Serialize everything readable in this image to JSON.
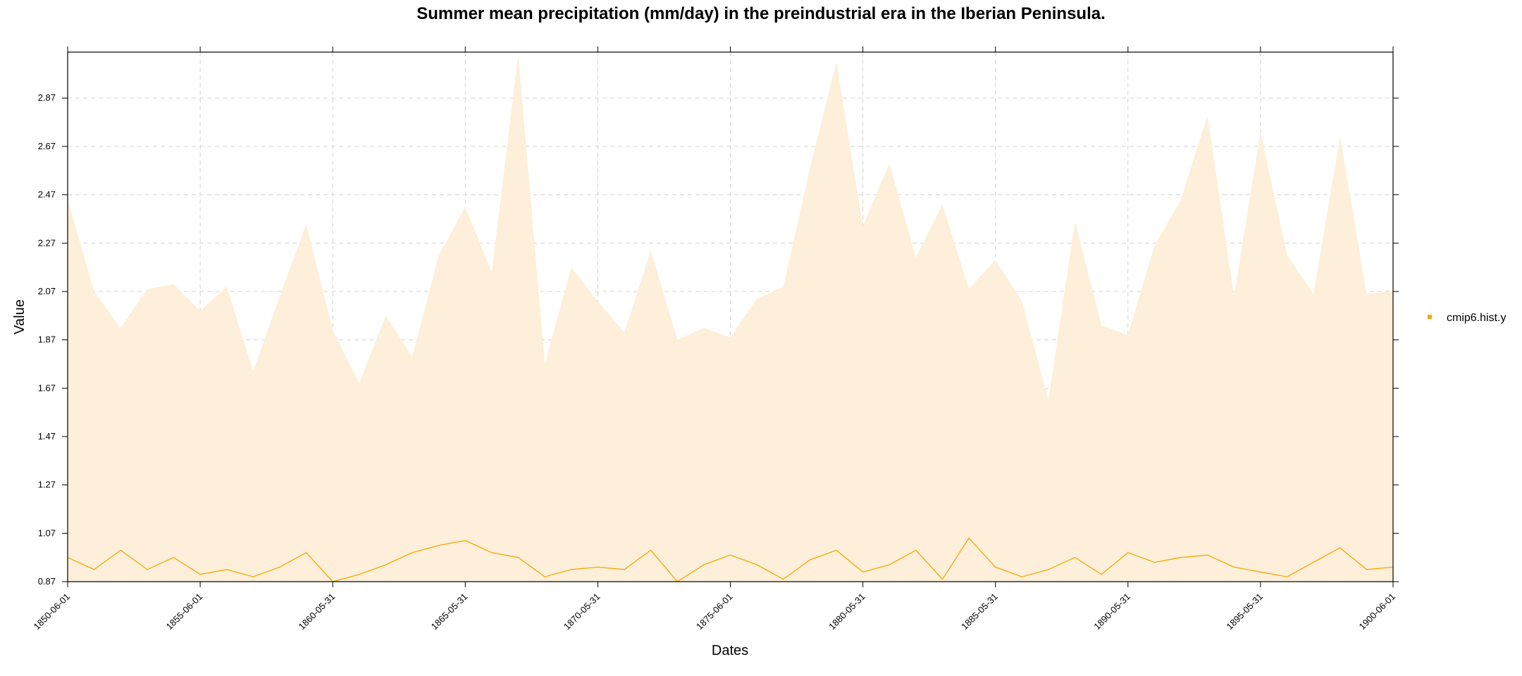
{
  "chart_data": {
    "type": "area",
    "title": "Summer mean precipitation (mm/day) in the preindustrial era in the Iberian Peninsula.",
    "xlabel": "Dates",
    "ylabel": "Value",
    "x_tick_labels": [
      "1850-06-01",
      "1855-06-01",
      "1860-05-31",
      "1865-05-31",
      "1870-05-31",
      "1875-06-01",
      "1880-05-31",
      "1885-05-31",
      "1890-05-31",
      "1895-05-31",
      "1900-06-01"
    ],
    "y_ticks": [
      0.87,
      1.07,
      1.27,
      1.47,
      1.67,
      1.87,
      2.07,
      2.27,
      2.47,
      2.67,
      2.87
    ],
    "ylim": [
      0.87,
      3.06
    ],
    "grid": true,
    "legend_position": "right",
    "years": [
      1850,
      1851,
      1852,
      1853,
      1854,
      1855,
      1856,
      1857,
      1858,
      1859,
      1860,
      1861,
      1862,
      1863,
      1864,
      1865,
      1866,
      1867,
      1868,
      1869,
      1870,
      1871,
      1872,
      1873,
      1874,
      1875,
      1876,
      1877,
      1878,
      1879,
      1880,
      1881,
      1882,
      1883,
      1884,
      1885,
      1886,
      1887,
      1888,
      1889,
      1890,
      1891,
      1892,
      1893,
      1894,
      1895,
      1896,
      1897,
      1898,
      1899,
      1900
    ],
    "series": [
      {
        "name": "cmip6.hist.y",
        "color": "#F5A800",
        "fill_color": "#FDEFD9",
        "mean": [
          0.97,
          0.92,
          1.0,
          0.92,
          0.97,
          0.9,
          0.92,
          0.89,
          0.93,
          0.99,
          0.87,
          0.9,
          0.94,
          0.99,
          1.02,
          1.04,
          0.99,
          0.97,
          0.89,
          0.92,
          0.93,
          0.92,
          1.0,
          0.87,
          0.94,
          0.98,
          0.94,
          0.88,
          0.96,
          1.0,
          0.91,
          0.94,
          1.0,
          0.88,
          1.05,
          0.93,
          0.89,
          0.92,
          0.97,
          0.9,
          0.99,
          0.95,
          0.97,
          0.98,
          0.93,
          0.91,
          0.89,
          0.95,
          1.01,
          0.92,
          0.93
        ],
        "upper": [
          2.45,
          2.07,
          1.92,
          2.08,
          2.1,
          1.99,
          2.09,
          1.74,
          2.05,
          2.35,
          1.91,
          1.69,
          1.97,
          1.8,
          2.22,
          2.42,
          2.15,
          3.05,
          1.77,
          2.17,
          2.03,
          1.9,
          2.24,
          1.87,
          1.92,
          1.88,
          2.04,
          2.09,
          2.58,
          3.02,
          2.34,
          2.6,
          2.21,
          2.43,
          2.08,
          2.2,
          2.03,
          1.62,
          2.36,
          1.93,
          1.89,
          2.26,
          2.45,
          2.8,
          2.05,
          2.73,
          2.22,
          2.06,
          2.71,
          2.06,
          2.07
        ]
      }
    ]
  }
}
